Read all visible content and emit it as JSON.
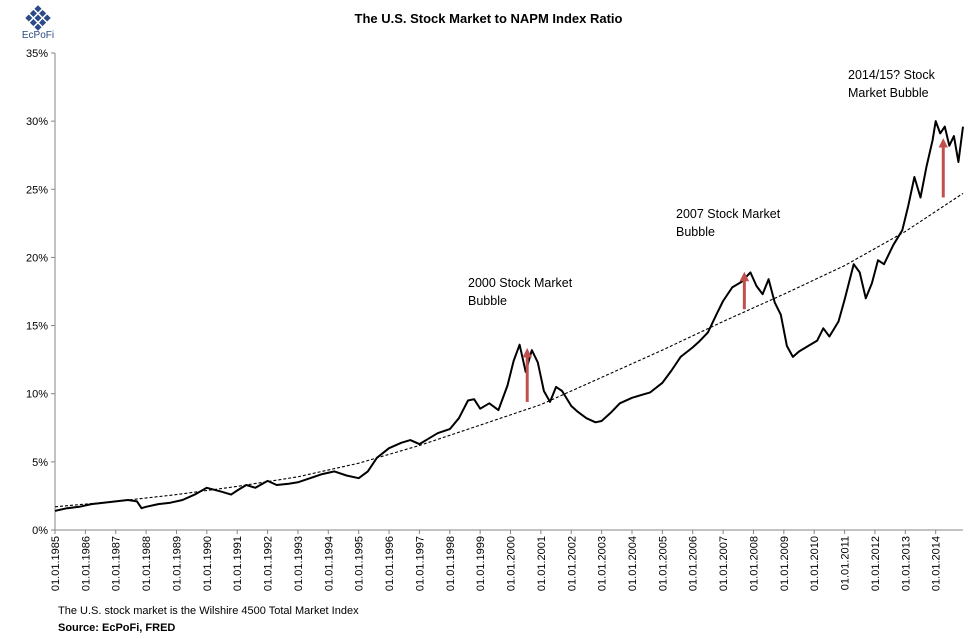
{
  "logo": {
    "text": "EcPoFi"
  },
  "chart_data": {
    "type": "line",
    "title": "The U.S. Stock Market to NAPM Index Ratio",
    "ylabel": "",
    "xlabel": "",
    "ylim": [
      0,
      35
    ],
    "xlim": [
      1985.0,
      2014.9
    ],
    "y_ticks": [
      "0%",
      "5%",
      "10%",
      "15%",
      "20%",
      "25%",
      "30%",
      "35%"
    ],
    "y_tick_values": [
      0,
      5,
      10,
      15,
      20,
      25,
      30,
      35
    ],
    "x_ticks": [
      "01.01.1985",
      "01.01.1986",
      "01.01.1987",
      "01.01.1988",
      "01.01.1989",
      "01.01.1990",
      "01.01.1991",
      "01.01.1992",
      "01.01.1993",
      "01.01.1994",
      "01.01.1995",
      "01.01.1996",
      "01.01.1997",
      "01.01.1998",
      "01.01.1999",
      "01.01.2000",
      "01.01.2001",
      "01.01.2002",
      "01.01.2003",
      "01.01.2004",
      "01.01.2005",
      "01.01.2006",
      "01.01.2007",
      "01.01.2008",
      "01.01.2009",
      "01.01.2010",
      "01.01.2011",
      "01.01.2012",
      "01.01.2013",
      "01.01.2014"
    ],
    "x_tick_values": [
      1985,
      1986,
      1987,
      1988,
      1989,
      1990,
      1991,
      1992,
      1993,
      1994,
      1995,
      1996,
      1997,
      1998,
      1999,
      2000,
      2001,
      2002,
      2003,
      2004,
      2005,
      2006,
      2007,
      2008,
      2009,
      2010,
      2011,
      2012,
      2013,
      2014
    ],
    "series": [
      {
        "name": "Ratio",
        "style": "solid",
        "color": "#000000",
        "x": [
          1985.0,
          1985.4,
          1985.8,
          1986.2,
          1986.6,
          1987.0,
          1987.4,
          1987.7,
          1987.85,
          1988.0,
          1988.4,
          1988.8,
          1989.2,
          1989.6,
          1990.0,
          1990.5,
          1990.8,
          1991.0,
          1991.3,
          1991.6,
          1992.0,
          1992.3,
          1992.7,
          1993.0,
          1993.4,
          1993.8,
          1994.2,
          1994.6,
          1995.0,
          1995.3,
          1995.6,
          1996.0,
          1996.4,
          1996.7,
          1997.0,
          1997.3,
          1997.6,
          1998.0,
          1998.3,
          1998.6,
          1998.8,
          1999.0,
          1999.3,
          1999.6,
          1999.9,
          2000.1,
          2000.3,
          2000.5,
          2000.7,
          2000.9,
          2001.1,
          2001.3,
          2001.5,
          2001.7,
          2002.0,
          2002.2,
          2002.5,
          2002.8,
          2003.0,
          2003.3,
          2003.6,
          2004.0,
          2004.3,
          2004.6,
          2005.0,
          2005.3,
          2005.6,
          2006.0,
          2006.2,
          2006.5,
          2006.8,
          2007.0,
          2007.3,
          2007.6,
          2007.9,
          2008.1,
          2008.3,
          2008.5,
          2008.7,
          2008.9,
          2009.1,
          2009.3,
          2009.5,
          2009.8,
          2010.1,
          2010.3,
          2010.5,
          2010.8,
          2011.0,
          2011.3,
          2011.5,
          2011.7,
          2011.9,
          2012.1,
          2012.3,
          2012.6,
          2012.9,
          2013.1,
          2013.3,
          2013.5,
          2013.7,
          2013.9,
          2014.0,
          2014.15,
          2014.3,
          2014.45,
          2014.6,
          2014.75,
          2014.9
        ],
        "values": [
          1.4,
          1.6,
          1.7,
          1.9,
          2.0,
          2.1,
          2.2,
          2.1,
          1.6,
          1.7,
          1.9,
          2.0,
          2.2,
          2.6,
          3.1,
          2.8,
          2.6,
          2.9,
          3.3,
          3.1,
          3.6,
          3.3,
          3.4,
          3.5,
          3.8,
          4.1,
          4.3,
          4.0,
          3.8,
          4.3,
          5.3,
          6.0,
          6.4,
          6.6,
          6.3,
          6.7,
          7.1,
          7.4,
          8.2,
          9.5,
          9.6,
          8.9,
          9.3,
          8.8,
          10.6,
          12.4,
          13.6,
          11.6,
          13.2,
          12.3,
          10.2,
          9.4,
          10.5,
          10.2,
          9.1,
          8.7,
          8.2,
          7.9,
          8.0,
          8.6,
          9.3,
          9.7,
          9.9,
          10.1,
          10.8,
          11.7,
          12.7,
          13.4,
          13.8,
          14.5,
          15.9,
          16.8,
          17.8,
          18.2,
          18.9,
          17.9,
          17.3,
          18.4,
          16.7,
          15.8,
          13.5,
          12.7,
          13.1,
          13.5,
          13.9,
          14.8,
          14.2,
          15.3,
          16.9,
          19.5,
          18.9,
          17.0,
          18.1,
          19.8,
          19.5,
          20.9,
          22.0,
          23.8,
          25.9,
          24.4,
          26.7,
          28.6,
          30.0,
          29.1,
          29.6,
          28.2,
          28.9,
          27.0,
          29.6
        ]
      },
      {
        "name": "Exponential trend",
        "style": "dashed",
        "color": "#000000",
        "x": [
          1985.0,
          1987.0,
          1989.0,
          1991.0,
          1993.0,
          1995.0,
          1997.0,
          1999.0,
          2001.0,
          2003.0,
          2005.0,
          2007.0,
          2009.0,
          2011.0,
          2013.0,
          2014.9
        ],
        "values": [
          1.7,
          2.1,
          2.6,
          3.2,
          3.9,
          4.9,
          6.2,
          7.7,
          9.2,
          11.2,
          13.2,
          15.3,
          17.3,
          19.4,
          21.9,
          24.7
        ]
      }
    ],
    "annotations": [
      {
        "text_lines": [
          "2000 Stock Market",
          "Bubble"
        ],
        "arrow_x": 2000.55,
        "arrow_from": 9.4,
        "arrow_to": 13.0
      },
      {
        "text_lines": [
          "2007 Stock Market",
          "Bubble"
        ],
        "arrow_x": 2007.7,
        "arrow_from": 16.2,
        "arrow_to": 18.6
      },
      {
        "text_lines": [
          "2014/15? Stock",
          "Market Bubble"
        ],
        "arrow_x": 2014.25,
        "arrow_from": 24.4,
        "arrow_to": 28.4
      }
    ],
    "annotation_arrow_color": "#c0504d",
    "grid": false
  },
  "footnote": "The U.S. stock market is the Wilshire 4500 Total Market Index",
  "source": "Source: EcPoFi,  FRED"
}
